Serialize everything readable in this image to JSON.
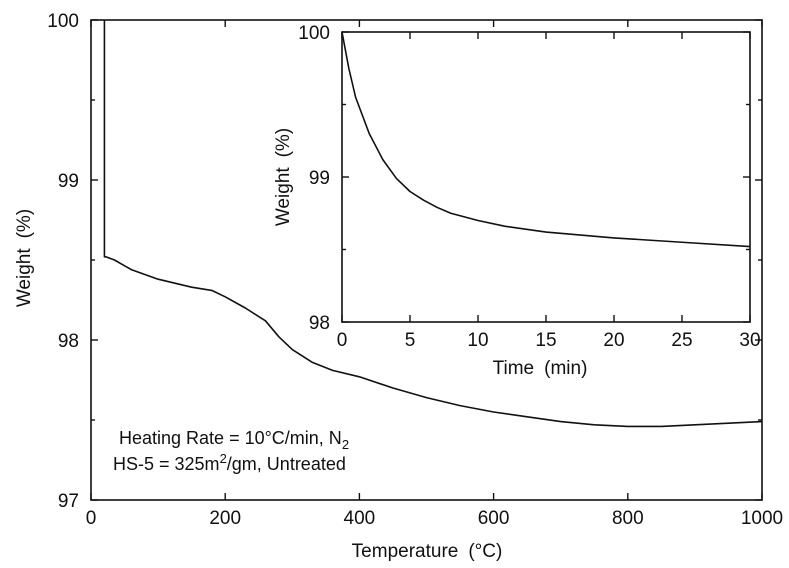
{
  "chart_data": [
    {
      "type": "line",
      "xlabel": "Temperature",
      "xunit": "(°C)",
      "ylabel": "Weight",
      "yunit": "(%)",
      "xlim": [
        0,
        1000
      ],
      "ylim": [
        97,
        100
      ],
      "xticks": [
        0,
        200,
        400,
        600,
        800,
        1000
      ],
      "yticks": [
        97,
        98,
        99,
        100
      ],
      "grid": false,
      "series": [
        {
          "x": [
            20,
            20,
            22,
            35,
            60,
            100,
            150,
            180,
            200,
            230,
            260,
            280,
            300,
            330,
            360,
            400,
            450,
            500,
            550,
            600,
            650,
            700,
            750,
            800,
            850,
            900,
            950,
            1000
          ],
          "values": [
            100,
            98.52,
            98.52,
            98.5,
            98.44,
            98.38,
            98.33,
            98.31,
            98.27,
            98.2,
            98.12,
            98.02,
            97.94,
            97.86,
            97.81,
            97.77,
            97.7,
            97.64,
            97.59,
            97.55,
            97.52,
            97.49,
            97.47,
            97.46,
            97.46,
            97.47,
            97.48,
            97.49
          ]
        }
      ],
      "annotations": {
        "line1_prefix": "Heating Rate = 10°C/min, N",
        "line1_sub": "2",
        "line2_prefix": "HS-5 = 325m",
        "line2_sup": "2",
        "line2_suffix": "/gm, Untreated"
      }
    },
    {
      "type": "line",
      "inset": true,
      "xlabel": "Time",
      "xunit": "(min)",
      "ylabel": "Weight",
      "yunit": "(%)",
      "xlim": [
        0,
        30
      ],
      "ylim": [
        98,
        100
      ],
      "xticks": [
        0,
        5,
        10,
        15,
        20,
        25,
        30
      ],
      "yticks": [
        98,
        99,
        100
      ],
      "grid": false,
      "series": [
        {
          "x": [
            0,
            0.5,
            1,
            2,
            3,
            4,
            5,
            6,
            7,
            8,
            10,
            12,
            15,
            20,
            25,
            30
          ],
          "values": [
            100,
            99.75,
            99.55,
            99.3,
            99.12,
            98.99,
            98.9,
            98.84,
            98.79,
            98.75,
            98.7,
            98.66,
            98.62,
            98.58,
            98.55,
            98.52
          ]
        }
      ]
    }
  ]
}
